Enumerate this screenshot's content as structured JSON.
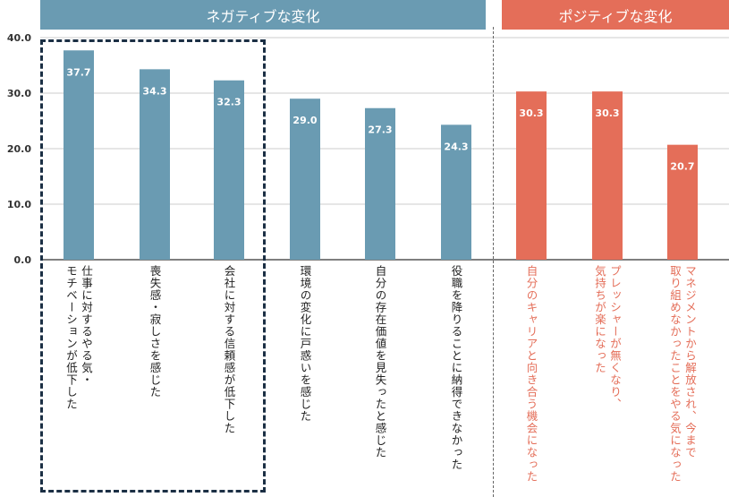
{
  "headers": {
    "negative": "ネガティブな変化",
    "positive": "ポジティブな変化"
  },
  "colors": {
    "negative": "#6a9bb2",
    "positive": "#e46e59",
    "highlight_box": "#1b2f44",
    "axis": "#333333"
  },
  "chart_data": {
    "type": "bar",
    "categories": [
      [
        "仕事に対するやる気・",
        "モチベーションが低下した"
      ],
      [
        "喪失感・寂しさを感じた"
      ],
      [
        "会社に対する信頼感が低下した"
      ],
      [
        "環境の変化に戸惑いを感じた"
      ],
      [
        "自分の存在価値を見失ったと感じた"
      ],
      [
        "役職を降りることに納得できなかった"
      ],
      [
        "自分のキャリアと向き合う機会になった"
      ],
      [
        "プレッシャーが無くなり、",
        "気持ちが楽になった"
      ],
      [
        "マネジメントから解放され、今まで",
        "取り組めなかったことをやる気になった"
      ]
    ],
    "values": [
      37.7,
      34.3,
      32.3,
      29.0,
      27.3,
      24.3,
      30.3,
      30.3,
      20.7
    ],
    "value_labels": [
      "37.7",
      "34.3",
      "32.3",
      "29.0",
      "27.3",
      "24.3",
      "30.3",
      "30.3",
      "20.7"
    ],
    "groups": [
      "negative",
      "negative",
      "negative",
      "negative",
      "negative",
      "negative",
      "positive",
      "positive",
      "positive"
    ],
    "y_ticks": [
      "0.0",
      "10.0",
      "20.0",
      "30.0",
      "40.0"
    ],
    "ylim": [
      0,
      40
    ],
    "grid": true,
    "highlighted": [
      0,
      1,
      2
    ]
  }
}
